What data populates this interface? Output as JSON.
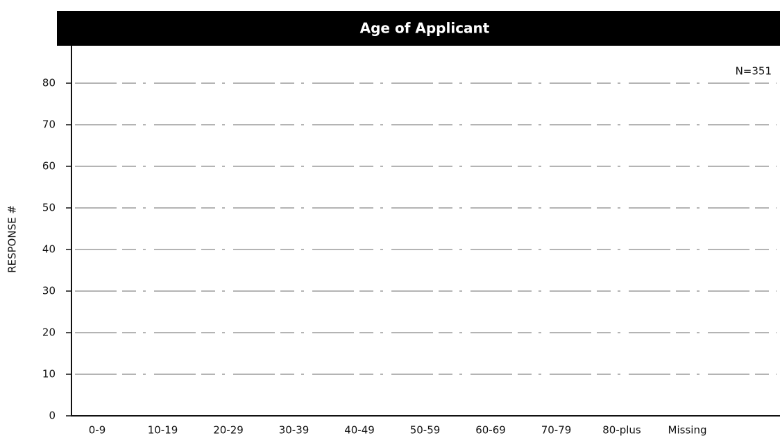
{
  "chart_data": {
    "type": "bar",
    "title": "Age of Applicant",
    "annotation": "N=351",
    "y_label": "RESPONSE #",
    "categories": [
      "0-9",
      "10-19",
      "20-29",
      "30-39",
      "40-49",
      "50-59",
      "60-69",
      "70-79",
      "80-plus",
      "Missing"
    ],
    "ylim": [
      0,
      89
    ],
    "yticks": [
      0,
      10,
      20,
      30,
      40,
      50,
      60,
      70,
      80
    ],
    "grid": true
  }
}
